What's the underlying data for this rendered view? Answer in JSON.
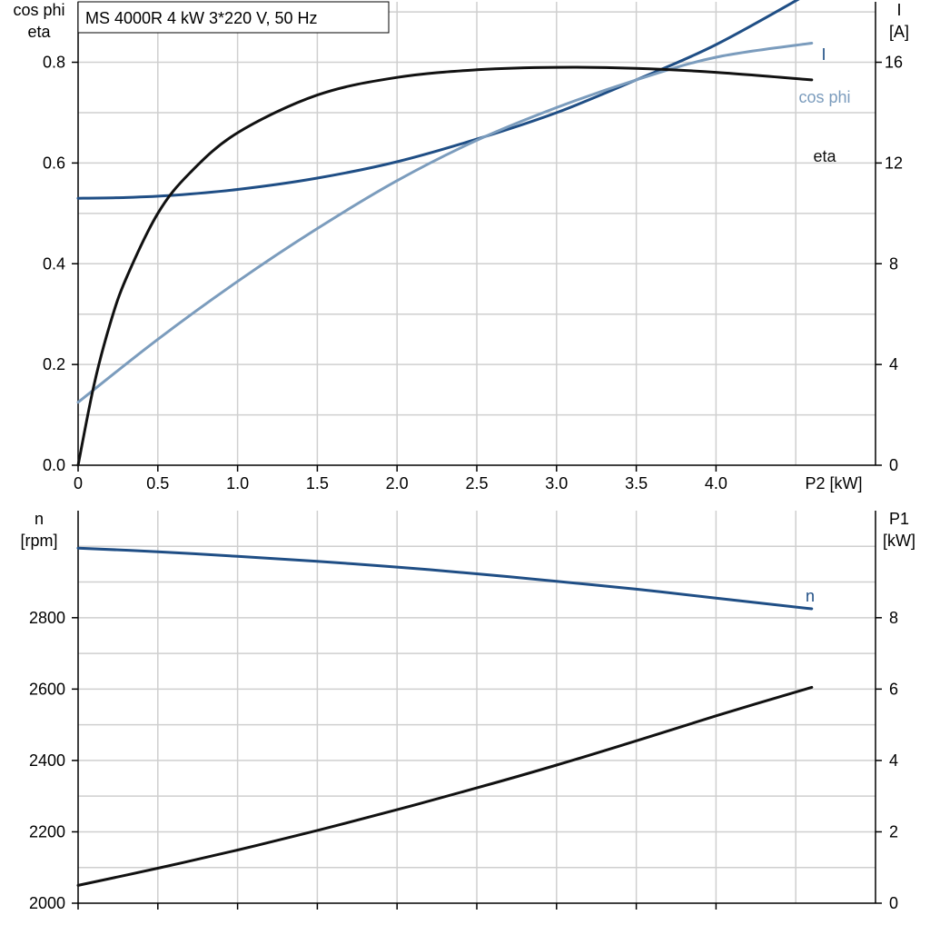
{
  "title": "MS 4000R   4 kW   3*220 V, 50 Hz",
  "colors": {
    "I": "#1f4e85",
    "cos_phi": "#7b9cbd",
    "eta": "#111111",
    "n": "#1f4e85",
    "P1": "#111111",
    "grid": "#cfcfcf"
  },
  "chart_data": [
    {
      "type": "line",
      "title": "MS 4000R   4 kW   3*220 V, 50 Hz",
      "xlabel": "P2 [kW]",
      "xlim": [
        0,
        5.0
      ],
      "x_ticks": [
        0,
        0.5,
        1.0,
        1.5,
        2.0,
        2.5,
        3.0,
        3.5,
        4.0
      ],
      "x_tick_labels": [
        "0",
        "0.5",
        "1.0",
        "1.5",
        "2.0",
        "2.5",
        "3.0",
        "3.5",
        "4.0"
      ],
      "ylabel_left": [
        "cos phi",
        "eta"
      ],
      "ylim_left": [
        0,
        0.92
      ],
      "y_ticks_left": [
        "0.0",
        "0.2",
        "0.4",
        "0.6",
        "0.8"
      ],
      "ylabel_right": [
        "I",
        "[A]"
      ],
      "ylim_right": [
        0,
        18.4
      ],
      "y_ticks_right": [
        "0",
        "4",
        "8",
        "12",
        "16"
      ],
      "grid": true,
      "series": [
        {
          "name": "I",
          "axis": "right",
          "x": [
            0,
            0.3,
            0.6,
            1.0,
            1.5,
            2.0,
            2.5,
            3.0,
            3.5,
            4.0,
            4.6
          ],
          "y": [
            10.6,
            10.63,
            10.72,
            10.95,
            11.4,
            12.05,
            12.95,
            14.0,
            15.3,
            16.7,
            18.8
          ]
        },
        {
          "name": "cos phi",
          "axis": "left",
          "x": [
            0,
            0.5,
            1.0,
            1.5,
            2.0,
            2.5,
            3.0,
            3.5,
            4.0,
            4.6
          ],
          "y": [
            0.125,
            0.25,
            0.365,
            0.47,
            0.565,
            0.645,
            0.71,
            0.765,
            0.81,
            0.838
          ]
        },
        {
          "name": "eta",
          "axis": "left",
          "x": [
            0,
            0.1,
            0.2,
            0.3,
            0.5,
            0.7,
            1.0,
            1.5,
            2.0,
            2.5,
            3.0,
            3.5,
            4.0,
            4.6
          ],
          "y": [
            0,
            0.16,
            0.28,
            0.37,
            0.5,
            0.58,
            0.66,
            0.735,
            0.77,
            0.785,
            0.79,
            0.788,
            0.78,
            0.765
          ]
        }
      ]
    },
    {
      "type": "line",
      "xlim": [
        0,
        5.0
      ],
      "x_ticks": [
        0,
        0.5,
        1.0,
        1.5,
        2.0,
        2.5,
        3.0,
        3.5,
        4.0
      ],
      "ylabel_left": [
        "n",
        "[rpm]"
      ],
      "ylim_left": [
        2000,
        3100
      ],
      "y_ticks_left": [
        "2000",
        "2200",
        "2400",
        "2600",
        "2800"
      ],
      "ylabel_right": [
        "P1",
        "[kW]"
      ],
      "ylim_right": [
        0,
        11
      ],
      "y_ticks_right": [
        "0",
        "2",
        "4",
        "6",
        "8"
      ],
      "grid": true,
      "series": [
        {
          "name": "n",
          "axis": "left",
          "x": [
            0,
            0.5,
            1.0,
            1.5,
            2.0,
            2.5,
            3.0,
            3.5,
            4.0,
            4.6
          ],
          "y": [
            2995,
            2985,
            2972,
            2958,
            2942,
            2923,
            2902,
            2880,
            2855,
            2825
          ]
        },
        {
          "name": "P1",
          "axis": "right",
          "x": [
            0,
            0.5,
            1.0,
            1.5,
            2.0,
            2.5,
            3.0,
            3.5,
            4.0,
            4.6
          ],
          "y": [
            0.5,
            0.98,
            1.49,
            2.04,
            2.62,
            3.23,
            3.87,
            4.55,
            5.25,
            6.05
          ]
        }
      ]
    }
  ]
}
